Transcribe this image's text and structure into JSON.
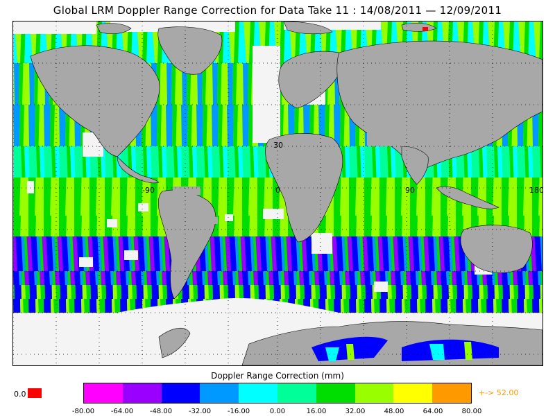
{
  "title": "Global LRM Doppler Range Correction for Data Take 11 : 14/08/2011 — 12/09/2011",
  "map": {
    "grid_labels": {
      "lat_30": "30",
      "lon_m90": "-90",
      "lon_0": "0",
      "lon_90": "90",
      "lon_180": "180"
    },
    "land_color": "#a8a8a8",
    "nodata_color": "#f4f4f4"
  },
  "colorbar": {
    "title": "Doppler Range Correction (mm)",
    "colors": [
      "#ff00ff",
      "#9900ff",
      "#0000ff",
      "#0099ff",
      "#00ffff",
      "#00ff99",
      "#00dd00",
      "#99ff00",
      "#ffff00",
      "#ff9900"
    ],
    "ticks": [
      "-80.00",
      "-64.00",
      "-48.00",
      "-32.00",
      "-16.00",
      "0.00",
      "16.00",
      "32.00",
      "48.00",
      "64.00",
      "80.00"
    ],
    "zero_label": "0.0",
    "zero_color": "#ff0000",
    "overflow_label": "+-> 52.00",
    "overflow_color": "#ff9900"
  }
}
